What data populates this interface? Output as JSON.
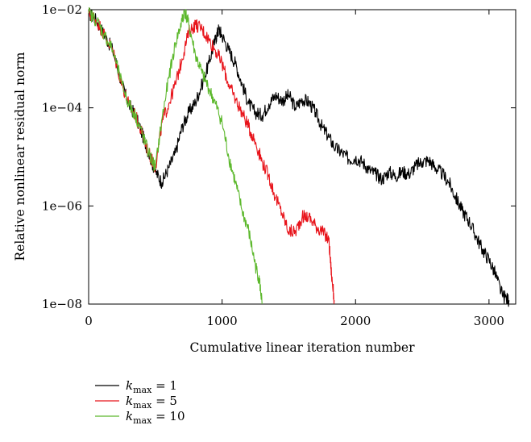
{
  "chart_data": {
    "type": "line",
    "title": "",
    "xlabel": "Cumulative linear iteration number",
    "ylabel": "Relative nonlinear residual norm",
    "y_scale": "log",
    "xlim": [
      0,
      3200
    ],
    "ylim": [
      1e-08,
      0.01
    ],
    "x_ticks": [
      0,
      1000,
      2000,
      3000
    ],
    "x_tick_labels": [
      "0",
      "1000",
      "2000",
      "3000"
    ],
    "y_ticks": [
      1e-08,
      1e-06,
      0.0001,
      0.01
    ],
    "y_tick_labels": [
      "1e−08",
      "1e−06",
      "1e−04",
      "1e−02"
    ],
    "grid": false,
    "legend_position": "below",
    "series": [
      {
        "name_prefix": "k",
        "name_subscript": "max",
        "name_suffix": " = 1",
        "color": "#000000",
        "x": [
          0,
          60,
          120,
          180,
          250,
          300,
          350,
          400,
          450,
          500,
          550,
          600,
          650,
          700,
          750,
          800,
          850,
          900,
          950,
          975,
          1000,
          1050,
          1100,
          1150,
          1200,
          1250,
          1300,
          1350,
          1400,
          1450,
          1500,
          1550,
          1600,
          1650,
          1700,
          1750,
          1800,
          1850,
          1900,
          1950,
          2000,
          2050,
          2100,
          2150,
          2200,
          2250,
          2300,
          2350,
          2400,
          2450,
          2500,
          2550,
          2600,
          2650,
          2700,
          2750,
          2800,
          2850,
          2900,
          2950,
          3000,
          3050,
          3100,
          3150
        ],
        "y": [
          0.0085,
          0.006,
          0.003,
          0.0015,
          0.0003,
          0.00012,
          7e-05,
          3e-05,
          1.2e-05,
          5e-06,
          3e-06,
          6e-06,
          1.2e-05,
          4e-05,
          8e-05,
          0.00013,
          0.0003,
          0.0008,
          0.0025,
          0.004,
          0.003,
          0.0015,
          0.0008,
          0.0003,
          0.00012,
          8e-05,
          7e-05,
          0.00012,
          0.00018,
          0.00014,
          0.00018,
          0.0001,
          0.00015,
          0.00013,
          8e-05,
          4e-05,
          2.5e-05,
          1.5e-05,
          1.2e-05,
          9e-06,
          9.5e-06,
          8e-06,
          5.5e-06,
          4.5e-06,
          3.5e-06,
          5e-06,
          4e-06,
          5e-06,
          4.5e-06,
          6.5e-06,
          8e-06,
          8.5e-06,
          6e-06,
          4.5e-06,
          3e-06,
          1.5e-06,
          8e-07,
          5e-07,
          2.5e-07,
          1.3e-07,
          8e-08,
          4e-08,
          1.5e-08,
          1.2e-08
        ]
      },
      {
        "name_prefix": "k",
        "name_subscript": "max",
        "name_suffix": " = 5",
        "color": "#e8141b",
        "x": [
          0,
          60,
          120,
          180,
          250,
          300,
          350,
          400,
          450,
          500,
          550,
          600,
          650,
          700,
          750,
          800,
          850,
          900,
          950,
          1000,
          1050,
          1100,
          1150,
          1200,
          1250,
          1300,
          1350,
          1400,
          1450,
          1500,
          1550,
          1600,
          1650,
          1700,
          1750,
          1800,
          1820,
          1840
        ],
        "y": [
          0.0085,
          0.006,
          0.003,
          0.0015,
          0.0003,
          0.00012,
          7e-05,
          3e-05,
          1.2e-05,
          6e-06,
          5e-05,
          0.00012,
          0.0003,
          0.001,
          0.0035,
          0.005,
          0.004,
          0.0025,
          0.0015,
          0.0008,
          0.0003,
          0.00015,
          8e-05,
          4e-05,
          2e-05,
          8e-06,
          4e-06,
          1.5e-06,
          7e-07,
          3e-07,
          3e-07,
          6e-07,
          6e-07,
          4e-07,
          3e-07,
          2e-07,
          4e-08,
          1.2e-08
        ]
      },
      {
        "name_prefix": "k",
        "name_subscript": "max",
        "name_suffix": " = 10",
        "color": "#5cb82c",
        "x": [
          0,
          60,
          120,
          180,
          250,
          300,
          350,
          400,
          450,
          500,
          550,
          600,
          650,
          700,
          720,
          750,
          800,
          850,
          900,
          950,
          1000,
          1050,
          1100,
          1150,
          1200,
          1250,
          1280,
          1300
        ],
        "y": [
          0.0085,
          0.006,
          0.003,
          0.0015,
          0.0003,
          0.00012,
          7e-05,
          3e-05,
          1.2e-05,
          6e-06,
          6e-05,
          0.0004,
          0.002,
          0.006,
          0.0095,
          0.005,
          0.0012,
          0.0005,
          0.00025,
          0.00012,
          5e-05,
          1e-05,
          3e-06,
          8e-07,
          3e-07,
          6e-08,
          3e-08,
          1e-08
        ]
      }
    ]
  }
}
